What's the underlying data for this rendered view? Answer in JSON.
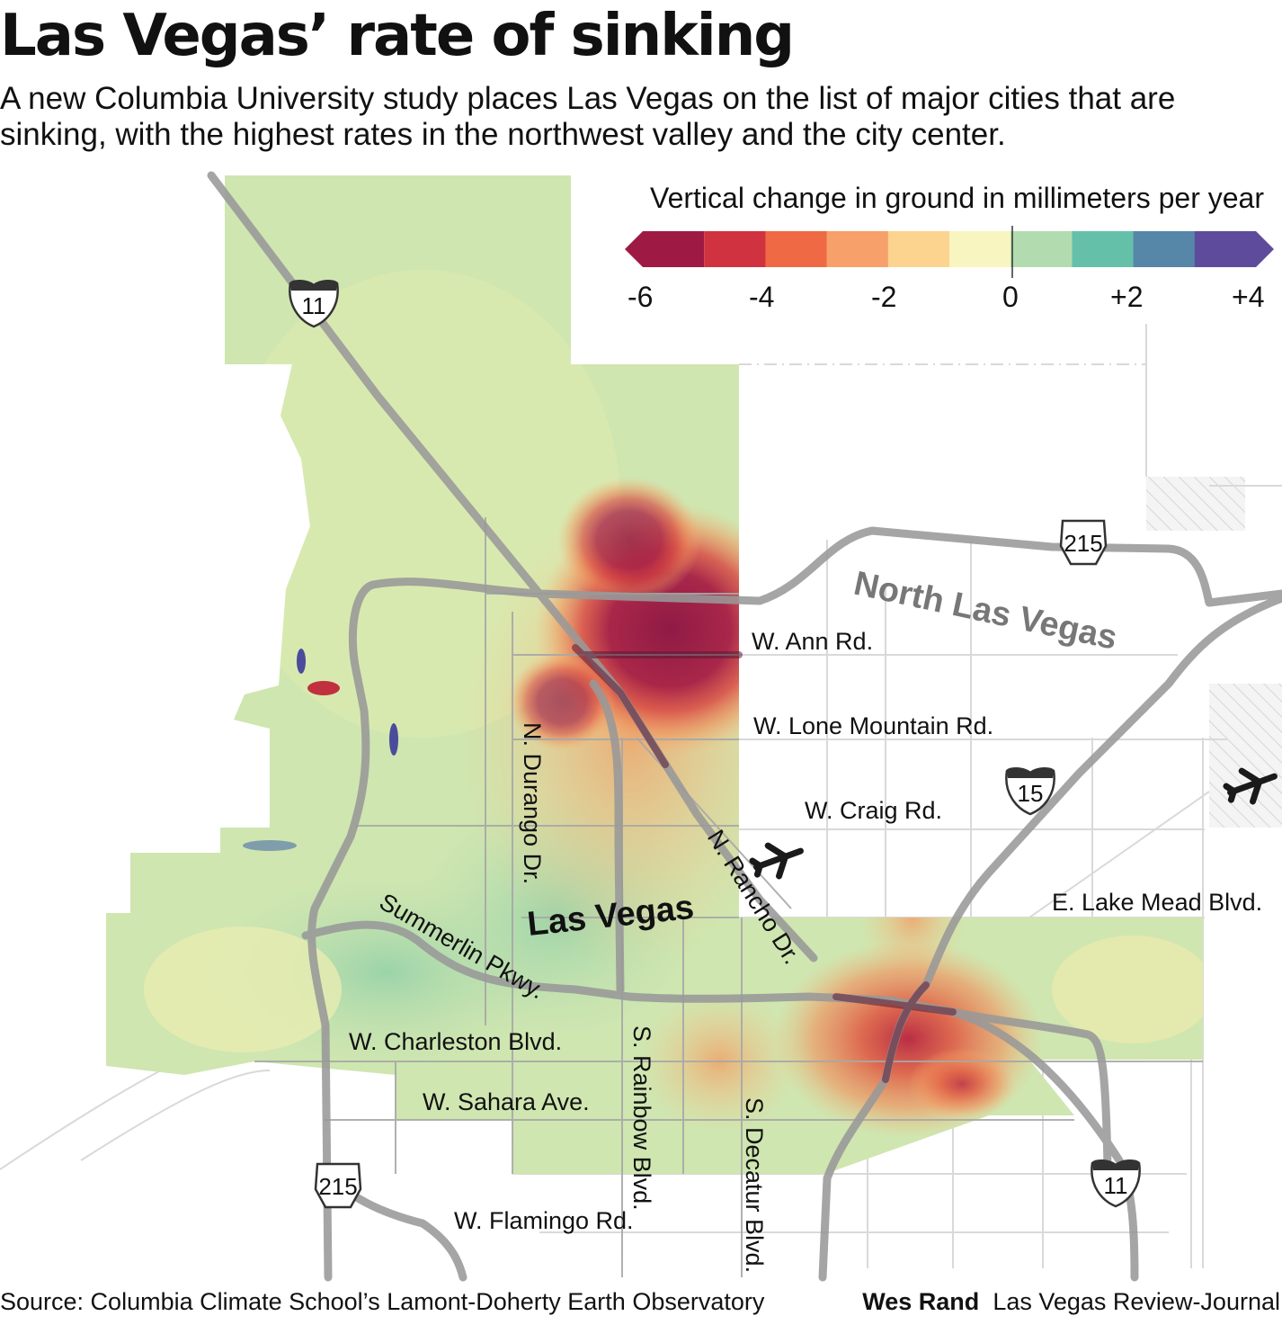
{
  "title": "Las Vegas’ rate of sinking",
  "subtitle": "A new Columbia University study places Las Vegas on the list of major cities that are sinking, with the highest rates in the northwest valley and the city center.",
  "legend": {
    "title": "Vertical change in ground in millimeters per year",
    "ticks": [
      "-6",
      "-4",
      "-2",
      "0",
      "+2",
      "+4"
    ],
    "colors": [
      "#9e1a45",
      "#d0333f",
      "#ef6a44",
      "#f7a06a",
      "#fcd38f",
      "#f8f5c0",
      "#b2dcb0",
      "#65c0aa",
      "#5686a8",
      "#5f4b9c"
    ]
  },
  "places": {
    "north_las_vegas": "North Las Vegas",
    "las_vegas": "Las Vegas"
  },
  "streets": {
    "ann": "W. Ann Rd.",
    "lone_mountain": "W. Lone Mountain Rd.",
    "craig": "W. Craig Rd.",
    "lake_mead": "E. Lake Mead Blvd.",
    "summerlin": "Summerlin Pkwy.",
    "charleston": "W. Charleston Blvd.",
    "sahara": "W. Sahara Ave.",
    "flamingo": "W. Flamingo Rd.",
    "durango": "N. Durango Dr.",
    "rainbow": "S. Rainbow Blvd.",
    "decatur": "S. Decatur Blvd.",
    "rancho": "N. Rancho Dr."
  },
  "highways": {
    "i11_north": "11",
    "i11_south": "11",
    "i15": "15",
    "r215_north": "215",
    "r215_west": "215"
  },
  "icons": {
    "airport_north": "airplane-icon",
    "airport_north_las_vegas": "airplane-icon"
  },
  "footer": {
    "source": "Source: Columbia Climate School’s Lamont-Doherty Earth Observatory",
    "author": "Wes Rand",
    "publication": "Las Vegas Review-Journal"
  }
}
